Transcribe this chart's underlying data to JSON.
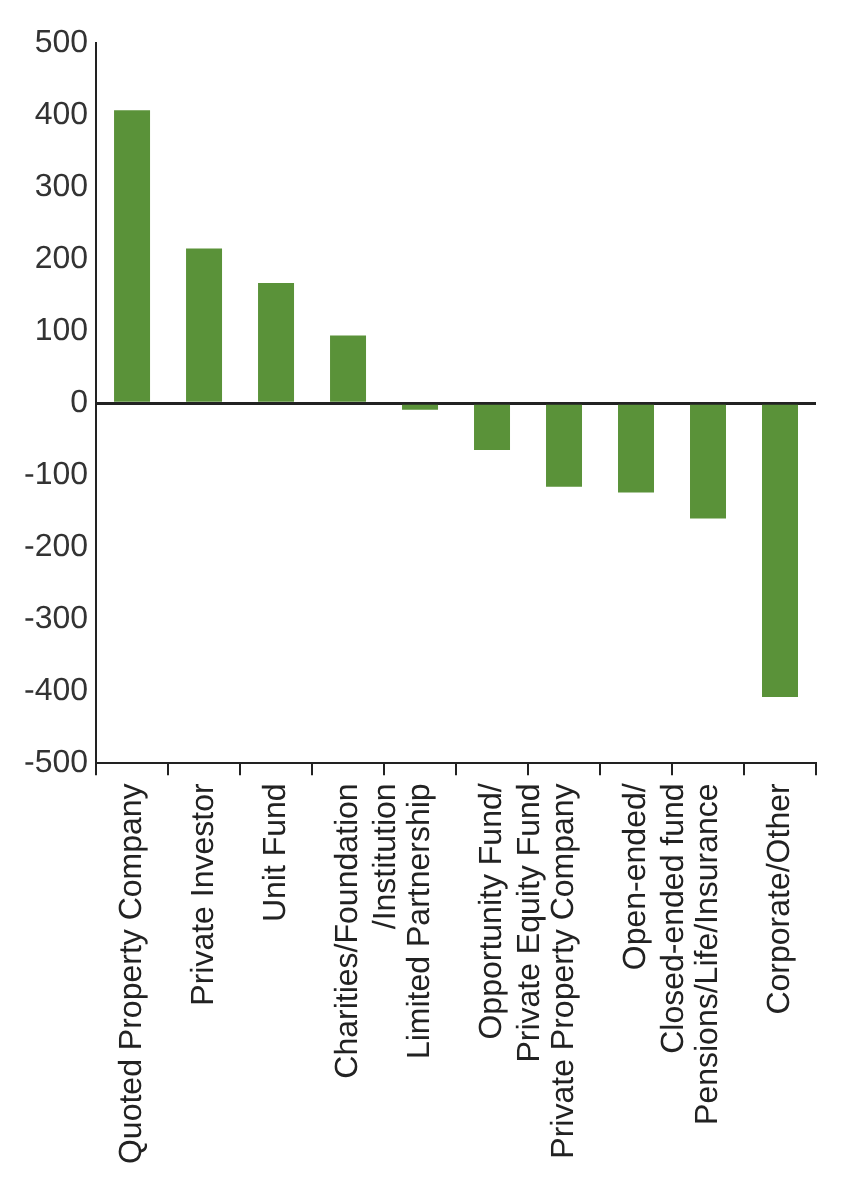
{
  "chart_data": {
    "type": "bar",
    "categories": [
      "Quoted Property Company",
      "Private Investor",
      "Unit Fund",
      "Charities/Foundation\n/Institution",
      "Limited Partnership",
      "Opportunity Fund/\nPrivate Equity Fund",
      "Private Property Company",
      "Open-ended/\nClosed-ended fund",
      "Pensions/Life/Insurance",
      "Corporate/Other"
    ],
    "values": [
      407,
      215,
      167,
      94,
      -9,
      -65,
      -116,
      -124,
      -160,
      -408
    ],
    "color": "#5a9239",
    "ylim": [
      -500,
      500
    ],
    "yticks": [
      -500,
      -400,
      -300,
      -200,
      -100,
      0,
      100,
      200,
      300,
      400,
      500
    ]
  }
}
